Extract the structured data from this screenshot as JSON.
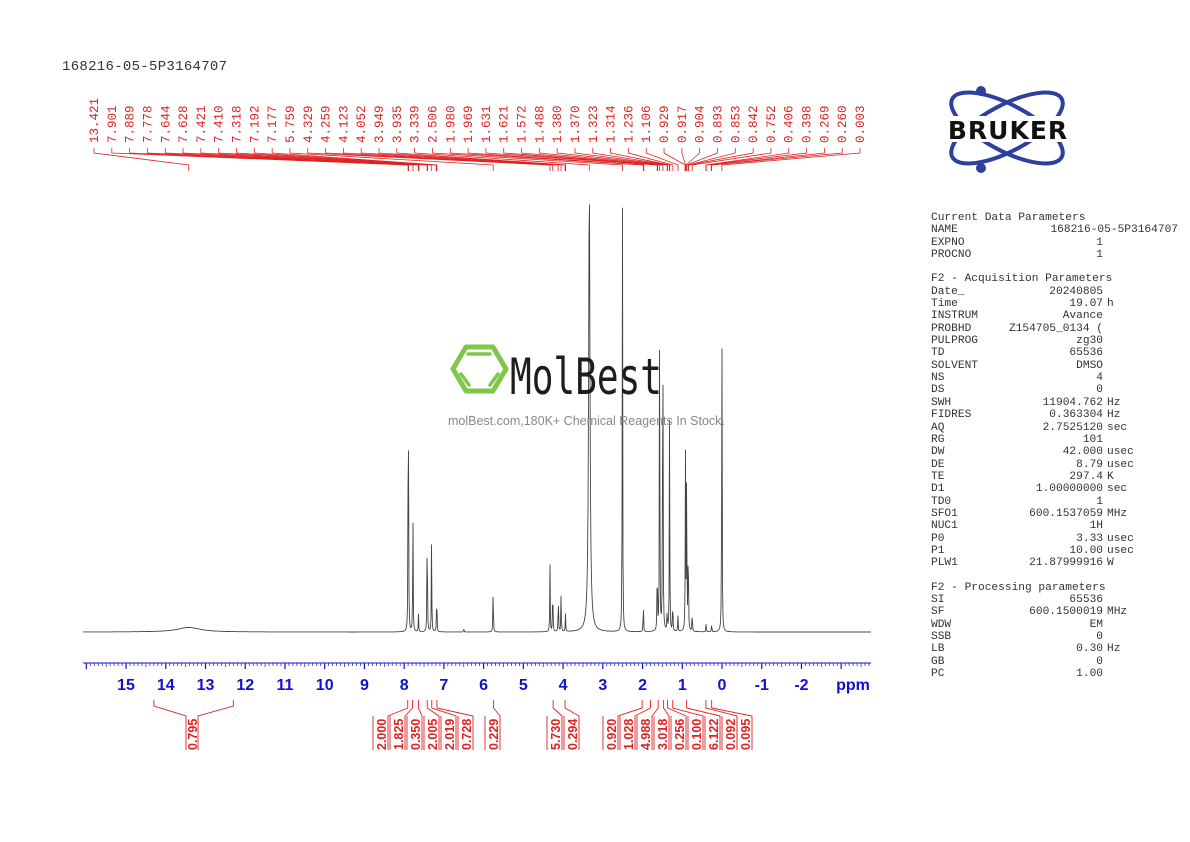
{
  "title": "168216-05-5P3164707",
  "logo": {
    "brand": "BRUKER",
    "color": "#2e3f9e"
  },
  "watermark": {
    "brand": "MolBest",
    "tagline": "molBest.com,180K+ Chemical Reagents In Stock.",
    "icon_color": "#7cc242"
  },
  "colors": {
    "axis": "#1010d0",
    "labels": "#d22",
    "spectrum": "#444"
  },
  "chart_data": {
    "type": "line",
    "title": "168216-05-5P3164707",
    "xlabel": "ppm",
    "ylabel": "",
    "xlim": [
      16,
      -3.7
    ],
    "x_reversed": true,
    "x_ticks": [
      "15",
      "14",
      "13",
      "12",
      "11",
      "10",
      "9",
      "8",
      "7",
      "6",
      "5",
      "4",
      "3",
      "2",
      "1",
      "0",
      "-1",
      "-2"
    ],
    "grid": false,
    "peak_labels": [
      "13.421",
      "7.901",
      "7.889",
      "7.778",
      "7.644",
      "7.628",
      "7.421",
      "7.410",
      "7.318",
      "7.192",
      "7.177",
      "5.759",
      "4.329",
      "4.259",
      "4.123",
      "4.052",
      "3.949",
      "3.935",
      "3.339",
      "2.506",
      "1.980",
      "1.969",
      "1.631",
      "1.621",
      "1.572",
      "1.488",
      "1.380",
      "1.370",
      "1.323",
      "1.314",
      "1.236",
      "1.106",
      "0.929",
      "0.917",
      "0.904",
      "0.893",
      "0.853",
      "0.842",
      "0.752",
      "0.406",
      "0.398",
      "0.269",
      "0.260",
      "0.003"
    ],
    "peaks": [
      {
        "ppm": 13.42,
        "rel_height": 0.01
      },
      {
        "ppm": 7.9,
        "rel_height": 0.35
      },
      {
        "ppm": 7.89,
        "rel_height": 0.3
      },
      {
        "ppm": 7.78,
        "rel_height": 0.28
      },
      {
        "ppm": 7.64,
        "rel_height": 0.04
      },
      {
        "ppm": 7.42,
        "rel_height": 0.28
      },
      {
        "ppm": 7.31,
        "rel_height": 0.21
      },
      {
        "ppm": 7.18,
        "rel_height": 0.1
      },
      {
        "ppm": 6.5,
        "rel_height": 0.01
      },
      {
        "ppm": 5.76,
        "rel_height": 0.11
      },
      {
        "ppm": 4.33,
        "rel_height": 0.15
      },
      {
        "ppm": 4.26,
        "rel_height": 0.12
      },
      {
        "ppm": 4.12,
        "rel_height": 0.09
      },
      {
        "ppm": 4.05,
        "rel_height": 0.09
      },
      {
        "ppm": 3.94,
        "rel_height": 0.04
      },
      {
        "ppm": 3.34,
        "rel_height": 1.0
      },
      {
        "ppm": 2.506,
        "rel_height": 1.0
      },
      {
        "ppm": 1.98,
        "rel_height": 0.07
      },
      {
        "ppm": 1.63,
        "rel_height": 0.18
      },
      {
        "ppm": 1.57,
        "rel_height": 0.78
      },
      {
        "ppm": 1.49,
        "rel_height": 0.91
      },
      {
        "ppm": 1.38,
        "rel_height": 0.05
      },
      {
        "ppm": 1.32,
        "rel_height": 0.49
      },
      {
        "ppm": 1.24,
        "rel_height": 0.08
      },
      {
        "ppm": 1.11,
        "rel_height": 0.04
      },
      {
        "ppm": 0.92,
        "rel_height": 0.4
      },
      {
        "ppm": 0.89,
        "rel_height": 0.41
      },
      {
        "ppm": 0.85,
        "rel_height": 0.25
      },
      {
        "ppm": 0.75,
        "rel_height": 0.05
      },
      {
        "ppm": 0.4,
        "rel_height": 0.02
      },
      {
        "ppm": 0.26,
        "rel_height": 0.02
      },
      {
        "ppm": 0.003,
        "rel_height": 0.78
      }
    ],
    "integrals": [
      {
        "value": "0.795",
        "from": 14.3,
        "to": 12.3
      },
      {
        "value": "2.000",
        "from": 7.96,
        "to": 7.86
      },
      {
        "value": "1.825",
        "from": 7.86,
        "to": 7.72
      },
      {
        "value": "0.350",
        "from": 7.7,
        "to": 7.58
      },
      {
        "value": "2.005",
        "from": 7.48,
        "to": 7.36
      },
      {
        "value": "2.019",
        "from": 7.36,
        "to": 7.25
      },
      {
        "value": "0.728",
        "from": 7.23,
        "to": 7.12
      },
      {
        "value": "0.229",
        "from": 5.85,
        "to": 5.65
      },
      {
        "value": "5.730",
        "from": 4.45,
        "to": 4.05
      },
      {
        "value": "0.294",
        "from": 4.02,
        "to": 3.88
      },
      {
        "value": "0.920",
        "from": 2.1,
        "to": 1.92
      },
      {
        "value": "1.028",
        "from": 1.9,
        "to": 1.7
      },
      {
        "value": "4.988",
        "from": 1.68,
        "to": 1.53
      },
      {
        "value": "3.018",
        "from": 1.52,
        "to": 1.42
      },
      {
        "value": "0.256",
        "from": 1.41,
        "to": 1.33
      },
      {
        "value": "0.100",
        "from": 1.3,
        "to": 1.18
      },
      {
        "value": "6.122",
        "from": 0.98,
        "to": 0.8
      },
      {
        "value": "0.092",
        "from": 0.45,
        "to": 0.36
      },
      {
        "value": "0.095",
        "from": 0.3,
        "to": 0.22
      }
    ]
  },
  "parameters": {
    "current": {
      "heading": "Current Data Parameters",
      "rows": [
        {
          "key": "NAME",
          "value": "168216-05-5P3164707",
          "unit": ""
        },
        {
          "key": "EXPNO",
          "value": "1",
          "unit": ""
        },
        {
          "key": "PROCNO",
          "value": "1",
          "unit": ""
        }
      ]
    },
    "acquisition": {
      "heading": "F2 - Acquisition Parameters",
      "rows": [
        {
          "key": "Date_",
          "value": "20240805",
          "unit": ""
        },
        {
          "key": "Time",
          "value": "19.07",
          "unit": "h"
        },
        {
          "key": "INSTRUM",
          "value": "Avance",
          "unit": ""
        },
        {
          "key": "PROBHD",
          "value": "Z154705_0134 (",
          "unit": ""
        },
        {
          "key": "PULPROG",
          "value": "zg30",
          "unit": ""
        },
        {
          "key": "TD",
          "value": "65536",
          "unit": ""
        },
        {
          "key": "SOLVENT",
          "value": "DMSO",
          "unit": ""
        },
        {
          "key": "NS",
          "value": "4",
          "unit": ""
        },
        {
          "key": "DS",
          "value": "0",
          "unit": ""
        },
        {
          "key": "SWH",
          "value": "11904.762",
          "unit": "Hz"
        },
        {
          "key": "FIDRES",
          "value": "0.363304",
          "unit": "Hz"
        },
        {
          "key": "AQ",
          "value": "2.7525120",
          "unit": "sec"
        },
        {
          "key": "RG",
          "value": "101",
          "unit": ""
        },
        {
          "key": "DW",
          "value": "42.000",
          "unit": "usec"
        },
        {
          "key": "DE",
          "value": "8.79",
          "unit": "usec"
        },
        {
          "key": "TE",
          "value": "297.4",
          "unit": "K"
        },
        {
          "key": "D1",
          "value": "1.00000000",
          "unit": "sec"
        },
        {
          "key": "TD0",
          "value": "1",
          "unit": ""
        },
        {
          "key": "SFO1",
          "value": "600.1537059",
          "unit": "MHz"
        },
        {
          "key": "NUC1",
          "value": "1H",
          "unit": ""
        },
        {
          "key": "P0",
          "value": "3.33",
          "unit": "usec"
        },
        {
          "key": "P1",
          "value": "10.00",
          "unit": "usec"
        },
        {
          "key": "PLW1",
          "value": "21.87999916",
          "unit": "W"
        }
      ]
    },
    "processing": {
      "heading": "F2 - Processing parameters",
      "rows": [
        {
          "key": "SI",
          "value": "65536",
          "unit": ""
        },
        {
          "key": "SF",
          "value": "600.1500019",
          "unit": "MHz"
        },
        {
          "key": "WDW",
          "value": "EM",
          "unit": ""
        },
        {
          "key": "SSB",
          "value": "0",
          "unit": ""
        },
        {
          "key": "LB",
          "value": "0.30",
          "unit": "Hz"
        },
        {
          "key": "GB",
          "value": "0",
          "unit": ""
        },
        {
          "key": "PC",
          "value": "1.00",
          "unit": ""
        }
      ]
    }
  }
}
